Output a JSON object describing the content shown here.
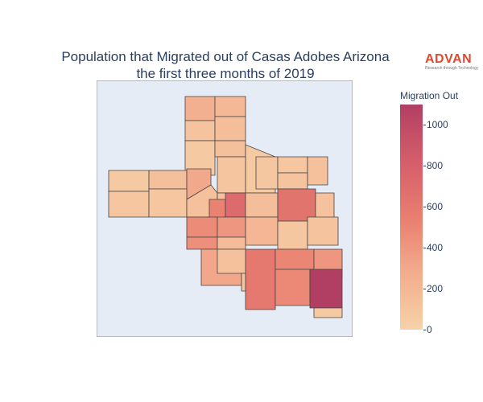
{
  "title": {
    "line1": "Population that Migrated out of Casas Adobes Arizona",
    "line2": "the first three months of 2019"
  },
  "logo": {
    "word": "ADVAN",
    "tagline": "Research through Technology"
  },
  "colorbar": {
    "title": "Migration Out",
    "ticks": [
      {
        "value": 0,
        "label": "0"
      },
      {
        "value": 200,
        "label": "200"
      },
      {
        "value": 400,
        "label": "400"
      },
      {
        "value": 600,
        "label": "600"
      },
      {
        "value": 800,
        "label": "800"
      },
      {
        "value": 1000,
        "label": "1000"
      }
    ],
    "range": [
      0,
      1100
    ],
    "colors": [
      "#f6d2a9",
      "#f3ad8e",
      "#ea8171",
      "#d55d6a",
      "#b13f64"
    ]
  },
  "map": {
    "background": "#e5ecf6",
    "border_color": "#444444",
    "region_values": [
      250,
      110,
      190,
      150,
      60,
      140,
      70,
      95,
      60,
      90,
      140,
      300,
      90,
      130,
      120,
      550,
      720,
      150,
      80,
      90,
      130,
      110,
      650,
      120,
      480,
      420,
      210,
      80,
      110,
      460,
      160,
      310,
      620,
      520,
      420,
      500,
      1100,
      60,
      130,
      110
    ]
  }
}
